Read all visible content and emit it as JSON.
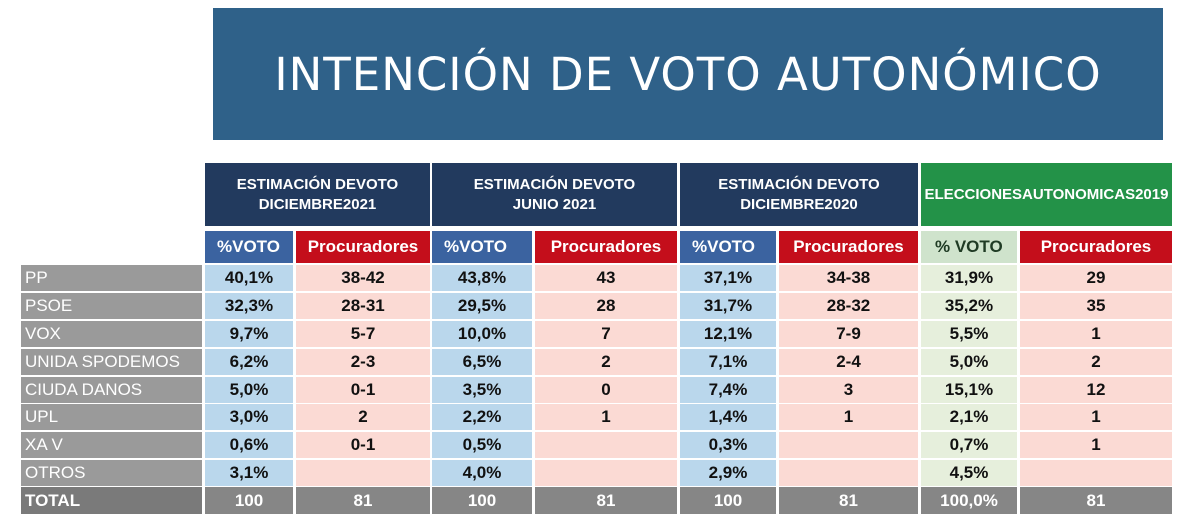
{
  "title": "INTENCIÓN DE VOTO AUTONÓMICO",
  "groups": [
    {
      "line1": "ESTIMACIÓN DEVOTO",
      "line2": "DICIEMBRE2021"
    },
    {
      "line1": "ESTIMACIÓN DEVOTO",
      "line2": "JUNIO 2021"
    },
    {
      "line1": "ESTIMACIÓN DEVOTO",
      "line2": "DICIEMBRE2020"
    },
    {
      "line1": "ELECCIONESAUTONOMICAS2019",
      "line2": ""
    }
  ],
  "subheaders": [
    "%VOTO",
    "Procuradores",
    "%VOTO",
    "Procuradores",
    "%VOTO",
    "Procuradores",
    "% VOTO",
    "Procuradores"
  ],
  "rows": [
    {
      "party": "PP",
      "cells": [
        "40,1%",
        "38-42",
        "43,8%",
        "43",
        "37,1%",
        "34-38",
        "31,9%",
        "29"
      ]
    },
    {
      "party": "PSOE",
      "cells": [
        "32,3%",
        "28-31",
        "29,5%",
        "28",
        "31,7%",
        "28-32",
        "35,2%",
        "35"
      ]
    },
    {
      "party": "VOX",
      "cells": [
        "9,7%",
        "5-7",
        "10,0%",
        "7",
        "12,1%",
        "7-9",
        "5,5%",
        "1"
      ]
    },
    {
      "party": "UNIDA SPODEMOS",
      "cells": [
        "6,2%",
        "2-3",
        "6,5%",
        "2",
        "7,1%",
        "2-4",
        "5,0%",
        "2"
      ]
    },
    {
      "party": "CIUDA DANOS",
      "cells": [
        "5,0%",
        "0-1",
        "3,5%",
        "0",
        "7,4%",
        "3",
        "15,1%",
        "12"
      ]
    },
    {
      "party": "UPL",
      "cells": [
        "3,0%",
        "2",
        "2,2%",
        "1",
        "1,4%",
        "1",
        "2,1%",
        "1"
      ]
    },
    {
      "party": "XA V",
      "cells": [
        "0,6%",
        "0-1",
        "0,5%",
        "",
        "0,3%",
        "",
        "0,7%",
        "1"
      ]
    },
    {
      "party": "OTROS",
      "cells": [
        "3,1%",
        "",
        "4,0%",
        "",
        "2,9%",
        "",
        "4,5%",
        ""
      ]
    }
  ],
  "total": {
    "party": "TOTAL",
    "cells": [
      "100",
      "81",
      "100",
      "81",
      "100",
      "81",
      "100,0%",
      "81"
    ]
  },
  "colors": {
    "banner": "#2f6189",
    "group_header": "#223a5e",
    "elections_header": "#239248",
    "vote_header": "#3b63a0",
    "seats_header": "#c40e1b",
    "vote_cell": "#bad7ec",
    "seats_cell": "#fbdad4",
    "elections_vote_cell": "#e6efdc",
    "party_cell": "#9a9a9a",
    "total_row": "#868686"
  }
}
